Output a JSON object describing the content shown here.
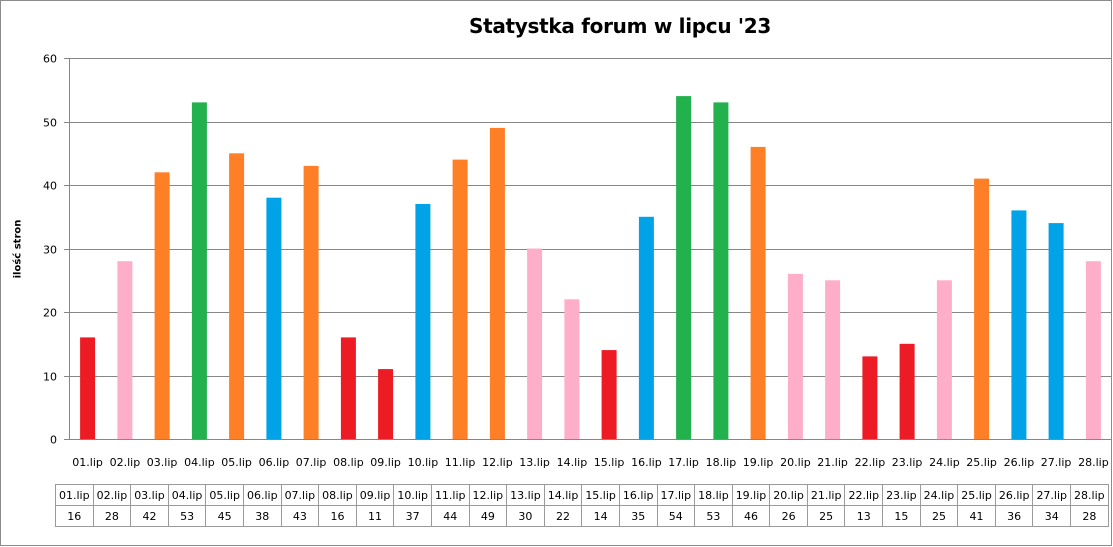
{
  "chart_data": {
    "type": "bar",
    "title": "Statystka forum w lipcu '23",
    "xlabel": "",
    "ylabel": "ilość stron",
    "ylim": [
      0,
      60
    ],
    "yticks": [
      "0",
      "10",
      "20",
      "30",
      "40",
      "50",
      "60"
    ],
    "grid": true,
    "categories": [
      "01.lip",
      "02.lip",
      "03.lip",
      "04.lip",
      "05.lip",
      "06.lip",
      "07.lip",
      "08.lip",
      "09.lip",
      "10.lip",
      "11.lip",
      "12.lip",
      "13.lip",
      "14.lip",
      "15.lip",
      "16.lip",
      "17.lip",
      "18.lip",
      "19.lip",
      "20.lip",
      "21.lip",
      "22.lip",
      "23.lip",
      "24.lip",
      "25.lip",
      "26.lip",
      "27.lip",
      "28.lip"
    ],
    "values": [
      16,
      28,
      42,
      53,
      45,
      38,
      43,
      16,
      11,
      37,
      44,
      49,
      30,
      22,
      14,
      35,
      54,
      53,
      46,
      26,
      25,
      13,
      15,
      25,
      41,
      36,
      34,
      28
    ],
    "bar_colors": [
      "#ed1c24",
      "#ffaec9",
      "#ff7f27",
      "#22b14c",
      "#ff7f27",
      "#00a2e8",
      "#ff7f27",
      "#ed1c24",
      "#ed1c24",
      "#00a2e8",
      "#ff7f27",
      "#ff7f27",
      "#ffaec9",
      "#ffaec9",
      "#ed1c24",
      "#00a2e8",
      "#22b14c",
      "#22b14c",
      "#ff7f27",
      "#ffaec9",
      "#ffaec9",
      "#ed1c24",
      "#ed1c24",
      "#ffaec9",
      "#ff7f27",
      "#00a2e8",
      "#00a2e8",
      "#ffaec9"
    ],
    "table": {
      "header": [
        "01.lip",
        "02.lip",
        "03.lip",
        "04.lip",
        "05.lip",
        "06.lip",
        "07.lip",
        "08.lip",
        "09.lip",
        "10.lip",
        "11.lip",
        "12.lip",
        "13.lip",
        "14.lip",
        "15.lip",
        "16.lip",
        "17.lip",
        "18.lip",
        "19.lip",
        "20.lip",
        "21.lip",
        "22.lip",
        "23.lip",
        "24.lip",
        "25.lip",
        "26.lip",
        "27.lip",
        "28.lip"
      ],
      "values": [
        "16",
        "28",
        "42",
        "53",
        "45",
        "38",
        "43",
        "16",
        "11",
        "37",
        "44",
        "49",
        "30",
        "22",
        "14",
        "35",
        "54",
        "53",
        "46",
        "26",
        "25",
        "13",
        "15",
        "25",
        "41",
        "36",
        "34",
        "28"
      ]
    }
  }
}
